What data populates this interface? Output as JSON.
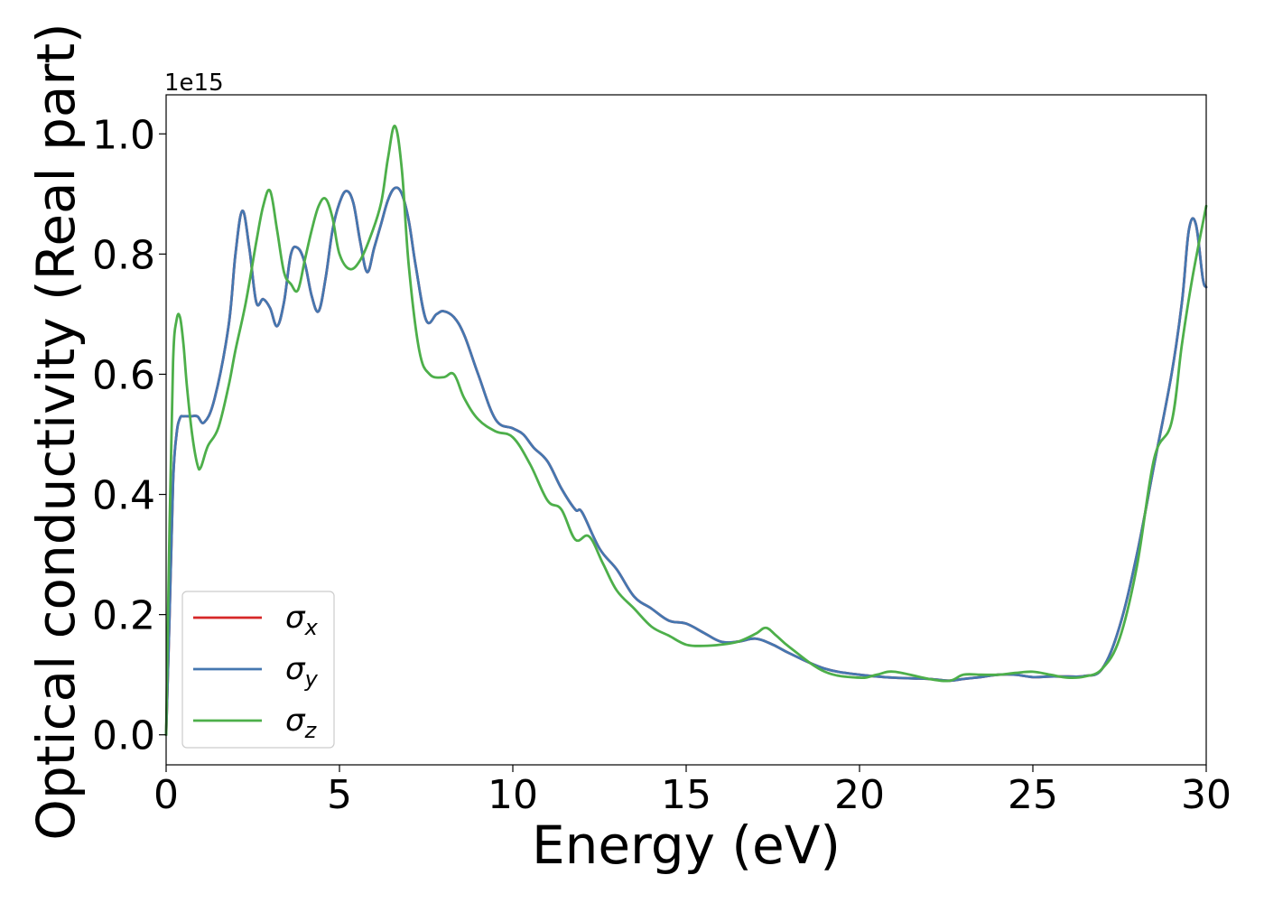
{
  "chart_data": {
    "type": "line",
    "title": "",
    "xlabel": "Energy (eV)",
    "ylabel": "Optical conductivity (Real part)",
    "y_scale_label": "1e15",
    "y_scale": 1000000000000000.0,
    "xlim": [
      0,
      30
    ],
    "ylim": [
      -0.05,
      1.065
    ],
    "xticks": [
      0,
      5,
      10,
      15,
      20,
      25,
      30
    ],
    "xtick_labels": [
      "0",
      "5",
      "10",
      "15",
      "20",
      "25",
      "30"
    ],
    "yticks": [
      0.0,
      0.2,
      0.4,
      0.6,
      0.8,
      1.0
    ],
    "ytick_labels": [
      "0.0",
      "0.2",
      "0.4",
      "0.6",
      "0.8",
      "1.0"
    ],
    "grid": false,
    "legend_position": "lower-left",
    "legend": [
      {
        "base": "σ",
        "sub": "x",
        "color": "#d62728"
      },
      {
        "base": "σ",
        "sub": "y",
        "color": "#4577b0"
      },
      {
        "base": "σ",
        "sub": "z",
        "color": "#4daf4a"
      }
    ],
    "series": [
      {
        "name": "σx",
        "color": "#d62728",
        "x": [
          0,
          0.1,
          0.2,
          0.3,
          0.4,
          0.5,
          0.7,
          0.9,
          1.1,
          1.4,
          1.8,
          2.0,
          2.2,
          2.4,
          2.6,
          2.8,
          3.0,
          3.2,
          3.4,
          3.6,
          3.8,
          4.0,
          4.2,
          4.4,
          4.6,
          4.8,
          5.0,
          5.2,
          5.4,
          5.6,
          5.8,
          6.0,
          6.2,
          6.4,
          6.6,
          6.8,
          7.0,
          7.2,
          7.5,
          7.8,
          8.0,
          8.3,
          8.6,
          9.0,
          9.5,
          10.0,
          10.3,
          10.6,
          11.0,
          11.4,
          11.8,
          12.0,
          12.5,
          13.0,
          13.5,
          14.0,
          14.5,
          15.0,
          15.5,
          16.0,
          16.5,
          17.0,
          17.5,
          18.0,
          19.0,
          20.0,
          21.0,
          22.0,
          22.6,
          23.0,
          23.5,
          24.0,
          24.5,
          25.0,
          25.5,
          26.0,
          26.5,
          27.0,
          27.5,
          28.0,
          28.5,
          29.0,
          29.3,
          29.5,
          29.7,
          29.9,
          30.0
        ],
        "values": [
          0.0,
          0.2,
          0.42,
          0.5,
          0.527,
          0.53,
          0.53,
          0.53,
          0.52,
          0.56,
          0.68,
          0.8,
          0.872,
          0.81,
          0.72,
          0.725,
          0.71,
          0.68,
          0.72,
          0.8,
          0.81,
          0.785,
          0.73,
          0.705,
          0.76,
          0.84,
          0.885,
          0.905,
          0.885,
          0.82,
          0.77,
          0.81,
          0.85,
          0.89,
          0.91,
          0.9,
          0.855,
          0.78,
          0.69,
          0.7,
          0.705,
          0.695,
          0.665,
          0.6,
          0.525,
          0.51,
          0.5,
          0.478,
          0.455,
          0.41,
          0.375,
          0.37,
          0.31,
          0.275,
          0.23,
          0.21,
          0.19,
          0.185,
          0.17,
          0.155,
          0.155,
          0.16,
          0.15,
          0.135,
          0.11,
          0.1,
          0.095,
          0.093,
          0.09,
          0.093,
          0.096,
          0.1,
          0.1,
          0.096,
          0.097,
          0.097,
          0.098,
          0.11,
          0.18,
          0.3,
          0.45,
          0.6,
          0.72,
          0.84,
          0.85,
          0.76,
          0.745
        ]
      },
      {
        "name": "σy",
        "color": "#4577b0",
        "x": [
          0,
          0.1,
          0.2,
          0.3,
          0.4,
          0.5,
          0.7,
          0.9,
          1.1,
          1.4,
          1.8,
          2.0,
          2.2,
          2.4,
          2.6,
          2.8,
          3.0,
          3.2,
          3.4,
          3.6,
          3.8,
          4.0,
          4.2,
          4.4,
          4.6,
          4.8,
          5.0,
          5.2,
          5.4,
          5.6,
          5.8,
          6.0,
          6.2,
          6.4,
          6.6,
          6.8,
          7.0,
          7.2,
          7.5,
          7.8,
          8.0,
          8.3,
          8.6,
          9.0,
          9.5,
          10.0,
          10.3,
          10.6,
          11.0,
          11.4,
          11.8,
          12.0,
          12.5,
          13.0,
          13.5,
          14.0,
          14.5,
          15.0,
          15.5,
          16.0,
          16.5,
          17.0,
          17.5,
          18.0,
          19.0,
          20.0,
          21.0,
          22.0,
          22.6,
          23.0,
          23.5,
          24.0,
          24.5,
          25.0,
          25.5,
          26.0,
          26.5,
          27.0,
          27.5,
          28.0,
          28.5,
          29.0,
          29.3,
          29.5,
          29.7,
          29.9,
          30.0
        ],
        "values": [
          0.0,
          0.2,
          0.42,
          0.5,
          0.527,
          0.53,
          0.53,
          0.53,
          0.52,
          0.56,
          0.68,
          0.8,
          0.872,
          0.81,
          0.72,
          0.725,
          0.71,
          0.68,
          0.72,
          0.8,
          0.81,
          0.785,
          0.73,
          0.705,
          0.76,
          0.84,
          0.885,
          0.905,
          0.885,
          0.82,
          0.77,
          0.81,
          0.85,
          0.89,
          0.91,
          0.9,
          0.855,
          0.78,
          0.69,
          0.7,
          0.705,
          0.695,
          0.665,
          0.6,
          0.525,
          0.51,
          0.5,
          0.478,
          0.455,
          0.41,
          0.375,
          0.37,
          0.31,
          0.275,
          0.23,
          0.21,
          0.19,
          0.185,
          0.17,
          0.155,
          0.155,
          0.16,
          0.15,
          0.135,
          0.11,
          0.1,
          0.095,
          0.093,
          0.09,
          0.093,
          0.096,
          0.1,
          0.1,
          0.096,
          0.097,
          0.097,
          0.098,
          0.11,
          0.18,
          0.3,
          0.45,
          0.6,
          0.72,
          0.84,
          0.85,
          0.76,
          0.745
        ]
      },
      {
        "name": "σz",
        "color": "#4daf4a",
        "x": [
          0,
          0.1,
          0.2,
          0.3,
          0.4,
          0.5,
          0.6,
          0.75,
          0.9,
          1.0,
          1.2,
          1.5,
          1.8,
          2.0,
          2.3,
          2.6,
          2.8,
          3.0,
          3.2,
          3.4,
          3.6,
          3.8,
          4.0,
          4.2,
          4.4,
          4.6,
          4.8,
          5.0,
          5.3,
          5.6,
          5.9,
          6.2,
          6.4,
          6.6,
          6.8,
          7.0,
          7.3,
          7.6,
          8.0,
          8.3,
          8.6,
          9.0,
          9.5,
          10.0,
          10.5,
          11.0,
          11.4,
          11.8,
          12.2,
          12.6,
          13.0,
          13.5,
          14.0,
          14.5,
          15.0,
          15.5,
          16.0,
          16.5,
          17.0,
          17.3,
          17.6,
          18.0,
          19.0,
          20.0,
          20.5,
          21.0,
          22.0,
          22.6,
          23.0,
          23.5,
          24.0,
          24.5,
          25.0,
          25.5,
          26.0,
          26.5,
          27.0,
          27.5,
          28.0,
          28.5,
          29.0,
          29.3,
          29.6,
          30.0
        ],
        "values": [
          0.0,
          0.35,
          0.62,
          0.69,
          0.695,
          0.65,
          0.58,
          0.5,
          0.45,
          0.445,
          0.48,
          0.51,
          0.58,
          0.64,
          0.72,
          0.82,
          0.88,
          0.905,
          0.84,
          0.77,
          0.75,
          0.74,
          0.79,
          0.84,
          0.88,
          0.892,
          0.86,
          0.8,
          0.775,
          0.79,
          0.83,
          0.885,
          0.96,
          1.013,
          0.94,
          0.78,
          0.64,
          0.6,
          0.595,
          0.6,
          0.56,
          0.525,
          0.505,
          0.495,
          0.45,
          0.39,
          0.375,
          0.325,
          0.33,
          0.285,
          0.24,
          0.21,
          0.18,
          0.165,
          0.15,
          0.148,
          0.15,
          0.155,
          0.168,
          0.178,
          0.165,
          0.145,
          0.105,
          0.095,
          0.1,
          0.105,
          0.093,
          0.09,
          0.1,
          0.1,
          0.1,
          0.103,
          0.105,
          0.1,
          0.095,
          0.097,
          0.11,
          0.16,
          0.28,
          0.46,
          0.52,
          0.65,
          0.76,
          0.88
        ]
      }
    ]
  }
}
